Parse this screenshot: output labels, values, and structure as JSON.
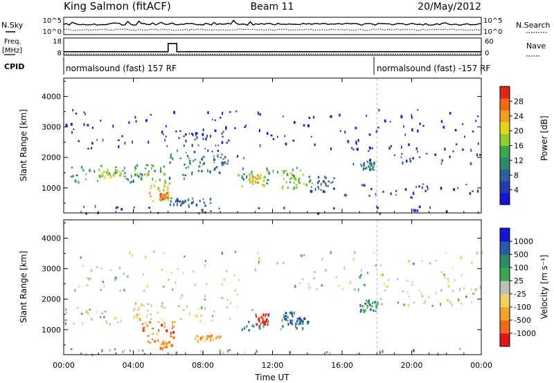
{
  "header": {
    "station": "King Salmon (fitACF)",
    "beam": "Beam 11",
    "date": "20/May/2012"
  },
  "chart_data": [
    {
      "type": "line",
      "panel": "noise",
      "left_label": "N.Sky",
      "right_label": "N.Search",
      "yticks_left": [
        "10^5",
        "10^0"
      ],
      "yticks_right": [
        "10^5",
        "10^0"
      ],
      "series": [
        {
          "name": "N.Sky",
          "values": []
        },
        {
          "name": "N.Search",
          "values": []
        }
      ]
    },
    {
      "type": "line",
      "panel": "frequency",
      "left_label_lines": [
        "Freq.",
        "[MHz]"
      ],
      "right_label": "Nave",
      "yticks_left": [
        "18",
        "8"
      ],
      "yticks_right": [
        "60",
        "0"
      ],
      "freq_segments": [
        {
          "x_start": "00:00",
          "x_end": "06:00",
          "value": 10.5
        },
        {
          "x_start": "06:00",
          "x_end": "06:30",
          "value": 17.5
        },
        {
          "x_start": "06:30",
          "x_end": "24:00",
          "value": 10.5
        }
      ],
      "nave_value": 2
    },
    {
      "type": "table",
      "panel": "cpid",
      "label": "CPID",
      "segments": [
        {
          "x_start": "00:00",
          "x_end": "18:00",
          "text": "normalsound (fast) 157 RF"
        },
        {
          "x_start": "18:00",
          "x_end": "24:00",
          "text": "normalsound (fast) -157 RF"
        }
      ]
    },
    {
      "type": "heatmap",
      "panel": "power",
      "ylabel": "Slant Range [km]",
      "ylim": [
        180,
        4600
      ],
      "yticks": [
        1000,
        2000,
        3000,
        4000
      ],
      "xlim": [
        0,
        24
      ],
      "colorbar": {
        "label": "Power [dB]",
        "ticks": [
          "4",
          "8",
          "12",
          "16",
          "20",
          "24",
          "28"
        ],
        "colors": [
          "#1515d8",
          "#1f3fa6",
          "#2c5ea0",
          "#2f8a6b",
          "#3aa84a",
          "#8fce2c",
          "#e6d619",
          "#f0a020",
          "#ee6a1a",
          "#e0261a"
        ]
      },
      "regions": [
        {
          "t0": 0.0,
          "t1": 4.0,
          "r0": 1200,
          "r1": 1750,
          "level": 3
        },
        {
          "t0": 2.0,
          "t1": 3.5,
          "r0": 1350,
          "r1": 1650,
          "level": 5
        },
        {
          "t0": 4.0,
          "t1": 5.8,
          "r0": 1300,
          "r1": 1800,
          "level": 4
        },
        {
          "t0": 4.8,
          "t1": 6.2,
          "r0": 600,
          "r1": 1300,
          "level": 6
        },
        {
          "t0": 5.5,
          "t1": 6.0,
          "r0": 650,
          "r1": 900,
          "level": 8
        },
        {
          "t0": 6.0,
          "t1": 10.5,
          "r0": 1300,
          "r1": 2200,
          "level": 2
        },
        {
          "t0": 6.5,
          "t1": 9.5,
          "r0": 2200,
          "r1": 3000,
          "level": 1
        },
        {
          "t0": 7.0,
          "t1": 9.5,
          "r0": 1500,
          "r1": 2100,
          "level": 3
        },
        {
          "t0": 6.0,
          "t1": 8.5,
          "r0": 450,
          "r1": 700,
          "level": 2
        },
        {
          "t0": 10.0,
          "t1": 13.5,
          "r0": 1000,
          "r1": 1700,
          "level": 4
        },
        {
          "t0": 10.5,
          "t1": 11.5,
          "r0": 1100,
          "r1": 1500,
          "level": 6
        },
        {
          "t0": 12.5,
          "t1": 14.0,
          "r0": 1000,
          "r1": 1600,
          "level": 5
        },
        {
          "t0": 14.0,
          "t1": 15.5,
          "r0": 900,
          "r1": 1400,
          "level": 2
        },
        {
          "t0": 17.0,
          "t1": 17.8,
          "r0": 1600,
          "r1": 1900,
          "level": 3
        },
        {
          "t0": 16.5,
          "t1": 24.0,
          "r0": 1800,
          "r1": 2400,
          "level": 1
        },
        {
          "t0": 16.0,
          "t1": 24.0,
          "r0": 700,
          "r1": 1200,
          "level": 1
        },
        {
          "t0": 0.0,
          "t1": 24.0,
          "r0": 200,
          "r1": 450,
          "level": 1
        },
        {
          "t0": 0.0,
          "t1": 24.0,
          "r0": 2300,
          "r1": 3600,
          "level": 0
        }
      ]
    },
    {
      "type": "heatmap",
      "panel": "velocity",
      "xlabel": "Time UT",
      "ylabel": "Slant Range [km]",
      "ylim": [
        180,
        4600
      ],
      "yticks": [
        1000,
        2000,
        3000,
        4000
      ],
      "xlim": [
        0,
        24
      ],
      "xticks": [
        "00:00",
        "04:00",
        "08:00",
        "12:00",
        "16:00",
        "20:00",
        "00:00"
      ],
      "colorbar": {
        "label": "Velocity [m s⁻¹]",
        "ticks": [
          "-1000",
          "-500",
          "-100",
          "-25",
          "25",
          "100",
          "500",
          "1000"
        ],
        "colors": [
          "#e0151a",
          "#ee6a1a",
          "#f3a325",
          "#f3d060",
          "#c0c0b8",
          "#3aa84a",
          "#2f8a6b",
          "#2a5aa8",
          "#1515d8"
        ]
      },
      "regions": [
        {
          "t0": 0.0,
          "t1": 5.0,
          "r0": 1200,
          "r1": 1750,
          "level": 4
        },
        {
          "t0": 4.0,
          "t1": 6.0,
          "r0": 1200,
          "r1": 1900,
          "level": 3
        },
        {
          "t0": 4.5,
          "t1": 6.5,
          "r0": 600,
          "r1": 1300,
          "level": 1
        },
        {
          "t0": 5.5,
          "t1": 6.2,
          "r0": 400,
          "r1": 650,
          "level": 2
        },
        {
          "t0": 6.5,
          "t1": 10.0,
          "r0": 1300,
          "r1": 2200,
          "level": 4
        },
        {
          "t0": 7.5,
          "t1": 9.0,
          "r0": 650,
          "r1": 850,
          "level": 2
        },
        {
          "t0": 10.0,
          "t1": 14.0,
          "r0": 1000,
          "r1": 1700,
          "level": 6
        },
        {
          "t0": 11.0,
          "t1": 11.8,
          "r0": 1200,
          "r1": 1550,
          "level": 0
        },
        {
          "t0": 12.5,
          "t1": 14.0,
          "r0": 1200,
          "r1": 1600,
          "level": 7
        },
        {
          "t0": 17.0,
          "t1": 18.0,
          "r0": 1600,
          "r1": 2000,
          "level": 6
        },
        {
          "t0": 18.0,
          "t1": 24.0,
          "r0": 1800,
          "r1": 2400,
          "level": 4
        },
        {
          "t0": 0.0,
          "t1": 24.0,
          "r0": 200,
          "r1": 450,
          "level": 5
        },
        {
          "t0": 0.0,
          "t1": 24.0,
          "r0": 2300,
          "r1": 3600,
          "level": 4
        }
      ]
    }
  ]
}
